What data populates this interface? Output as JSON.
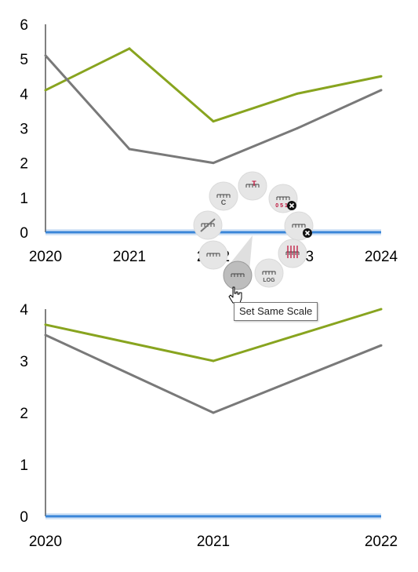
{
  "colors": {
    "series_1": "#88a41f",
    "series_2": "#797979",
    "axis": "#000000",
    "zero_band": "#3a86d8"
  },
  "chart_data": [
    {
      "type": "line",
      "x": [
        "2020",
        "2021",
        "2022",
        "2023",
        "2024"
      ],
      "series": [
        {
          "values": [
            4.1,
            5.3,
            3.2,
            4.0,
            4.5
          ],
          "color": "#88a41f"
        },
        {
          "values": [
            5.1,
            2.4,
            2.0,
            3.0,
            4.1
          ],
          "color": "#797979"
        }
      ],
      "ylim": [
        0,
        6
      ],
      "yticks": [
        "0",
        "1",
        "2",
        "3",
        "4",
        "5",
        "6"
      ],
      "grid": false
    },
    {
      "type": "line",
      "x": [
        "2020",
        "2021",
        "2022"
      ],
      "series": [
        {
          "values": [
            3.7,
            3.0,
            4.0
          ],
          "color": "#88a41f"
        },
        {
          "values": [
            3.5,
            2.0,
            3.3
          ],
          "color": "#797979"
        }
      ],
      "ylim": [
        0,
        4
      ],
      "yticks": [
        "0",
        "1",
        "2",
        "3",
        "4"
      ],
      "grid": false
    }
  ],
  "axis_menu": {
    "tooltip": "Set Same Scale",
    "items": [
      {
        "name": "title-axis-button",
        "icon": "axis-title-icon",
        "glyph": "T"
      },
      {
        "name": "tick-labels-button",
        "icon": "tick-labels-remove-icon",
        "glyph": "0 5 10"
      },
      {
        "name": "tick-marks-button",
        "icon": "tick-marks-remove-icon",
        "glyph": ""
      },
      {
        "name": "gridlines-button",
        "icon": "gridlines-icon",
        "glyph": ""
      },
      {
        "name": "log-scale-button",
        "icon": "log-scale-icon",
        "glyph": "LOG"
      },
      {
        "name": "same-scale-button",
        "icon": "same-scale-icon",
        "glyph": ""
      },
      {
        "name": "axis-arrow-button",
        "icon": "axis-arrow-icon",
        "glyph": ""
      },
      {
        "name": "axis-break-button",
        "icon": "axis-break-icon",
        "glyph": ""
      },
      {
        "name": "axis-crossing-button",
        "icon": "axis-crossing-icon",
        "glyph": "C"
      }
    ]
  }
}
